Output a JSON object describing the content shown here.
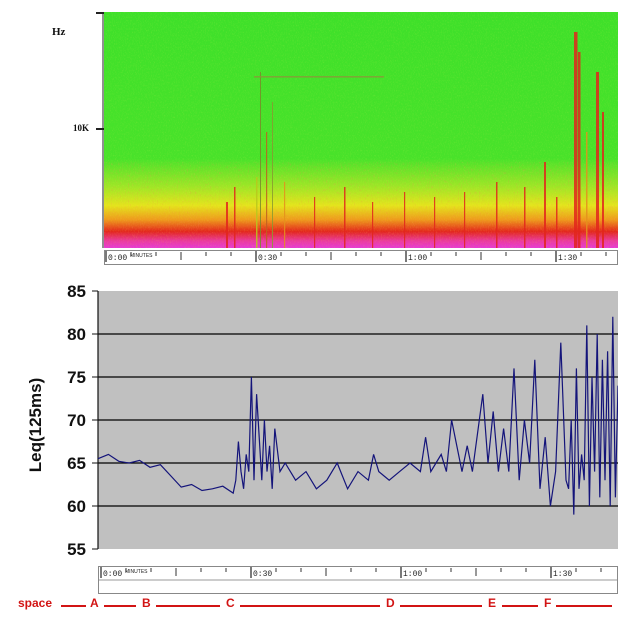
{
  "spectrogram": {
    "ylabel": "Hz",
    "ytick": "10K",
    "time_labels": [
      {
        "t": 0,
        "text": "0:00",
        "unit": "MINUTES"
      },
      {
        "t": 30,
        "text": "0:30",
        "unit": ""
      },
      {
        "t": 60,
        "text": "1:00",
        "unit": ""
      },
      {
        "t": 90,
        "text": "1:30",
        "unit": ""
      }
    ],
    "colors": {
      "quiet": "#44e22a",
      "mid": "#d8e81a",
      "loud": "#e0261c",
      "peak": "#e43ad6"
    }
  },
  "time_axis": {
    "labels": [
      {
        "t": 0,
        "text": "0:00",
        "unit": "MINUTES"
      },
      {
        "t": 30,
        "text": "0:30",
        "unit": ""
      },
      {
        "t": 60,
        "text": "1:00",
        "unit": ""
      },
      {
        "t": 90,
        "text": "1:30",
        "unit": ""
      }
    ]
  },
  "segments": {
    "labels": [
      "space",
      "A",
      "B",
      "C",
      "D",
      "E",
      "F"
    ],
    "color": "#d21414"
  },
  "chart_data": [
    {
      "type": "line",
      "title": "",
      "xlabel": "",
      "ylabel": "Leq(125ms)",
      "ylim": [
        55,
        85
      ],
      "yticks": [
        55,
        60,
        65,
        70,
        75,
        80,
        85
      ],
      "xlim": [
        0,
        100
      ],
      "grid": true,
      "colors": {
        "plot_bg": "#c0c0c0",
        "line": "#14147a",
        "grid": "#000000"
      },
      "series": [
        {
          "x": [
            0,
            2,
            4,
            6,
            8,
            10,
            12,
            14,
            16,
            18,
            20,
            22,
            24,
            26,
            26.5,
            27,
            27.5,
            28,
            28.5,
            29,
            29.5,
            30,
            30.5,
            31,
            31.5,
            32,
            32.5,
            33,
            33.5,
            34,
            35,
            36,
            38,
            40,
            42,
            44,
            46,
            48,
            50,
            52,
            53,
            54,
            56,
            58,
            60,
            62,
            63,
            64,
            66,
            67,
            68,
            70,
            71,
            72,
            74,
            75,
            76,
            77,
            78,
            79,
            80,
            81,
            82,
            83,
            84,
            85,
            86,
            87,
            88,
            89,
            90,
            90.5,
            91,
            91.5,
            92,
            92.5,
            93,
            93.5,
            94,
            94.5,
            95,
            95.5,
            96,
            96.5,
            97,
            97.5,
            98,
            98.5,
            99,
            99.5,
            100
          ],
          "y": [
            65.5,
            66,
            65.2,
            65,
            65.3,
            64.5,
            64.8,
            63.5,
            62.2,
            62.5,
            61.8,
            62,
            62.3,
            61.5,
            63,
            67.5,
            64,
            62,
            66,
            64,
            75,
            63,
            73,
            68,
            63,
            70,
            64,
            67,
            62,
            69,
            64,
            65,
            63,
            64,
            62,
            63,
            65,
            62,
            64,
            63,
            66,
            64,
            63,
            64,
            65,
            64,
            68,
            64,
            66,
            64,
            70,
            64,
            67,
            64,
            73,
            65,
            71,
            64,
            69,
            64,
            76,
            63,
            70,
            65,
            77,
            62,
            68,
            60,
            64,
            79,
            63,
            62,
            70,
            59,
            76,
            62,
            66,
            63,
            81,
            60,
            75,
            64,
            80,
            61,
            77,
            63,
            78,
            60,
            82,
            61,
            74
          ]
        }
      ]
    }
  ]
}
